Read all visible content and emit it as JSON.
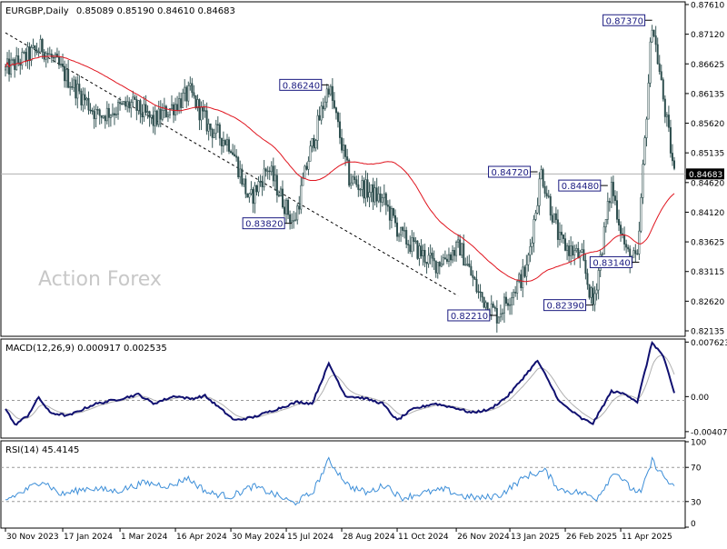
{
  "chart_data": {
    "type": "candlestick",
    "symbol_line": {
      "symbol": "EURGBP,Daily",
      "ohlc": "0.85089 0.85190 0.84610 0.84683"
    },
    "watermark": "Action Forex",
    "current_price": "0.84683",
    "price_axis": {
      "ylim": [
        0.8186,
        0.8766
      ],
      "ticks": [
        "0.87610",
        "0.87120",
        "0.86625",
        "0.86135",
        "0.85620",
        "0.85135",
        "0.84620",
        "0.84120",
        "0.83625",
        "0.83115",
        "0.82620",
        "0.82135"
      ]
    },
    "x_axis": {
      "ticks": [
        "30 Nov 2023",
        "17 Jan 2024",
        "1 Mar 2024",
        "16 Apr 2024",
        "30 May 2024",
        "15 Jul 2024",
        "28 Aug 2024",
        "11 Oct 2024",
        "26 Nov 2024",
        "13 Jan 2025",
        "26 Feb 2025",
        "11 Apr 2025"
      ],
      "tick_index": [
        0,
        31,
        62,
        92,
        122,
        152,
        182,
        212,
        244,
        273,
        303,
        333
      ]
    },
    "num_bars": 363,
    "price_path": [
      [
        0,
        0.865
      ],
      [
        20,
        0.869
      ],
      [
        50,
        0.857
      ],
      [
        68,
        0.859
      ],
      [
        80,
        0.856
      ],
      [
        100,
        0.861
      ],
      [
        110,
        0.855
      ],
      [
        122,
        0.852
      ],
      [
        132,
        0.842
      ],
      [
        142,
        0.848
      ],
      [
        156,
        0.838
      ],
      [
        164,
        0.8495
      ],
      [
        175,
        0.8624
      ],
      [
        186,
        0.846
      ],
      [
        205,
        0.842
      ],
      [
        214,
        0.836
      ],
      [
        232,
        0.831
      ],
      [
        246,
        0.834
      ],
      [
        256,
        0.826
      ],
      [
        266,
        0.8221
      ],
      [
        282,
        0.83
      ],
      [
        290,
        0.8472
      ],
      [
        300,
        0.835
      ],
      [
        312,
        0.832
      ],
      [
        318,
        0.8239
      ],
      [
        328,
        0.8448
      ],
      [
        336,
        0.833
      ],
      [
        342,
        0.8314
      ],
      [
        350,
        0.8737
      ],
      [
        356,
        0.86
      ],
      [
        362,
        0.8468
      ]
    ],
    "series": [
      {
        "name": "Moving Average (red)",
        "color": "#e0141e"
      }
    ],
    "trendline": {
      "from": [
        0,
        0.8715
      ],
      "to": [
        245,
        0.8255
      ],
      "style": "dashed",
      "upper_channel": {
        "from": [
          0,
          0.869
        ],
        "to": [
          98,
          0.856
        ]
      }
    },
    "price_labels": [
      {
        "text": "0.86240",
        "value": 0.8624,
        "bar": 175,
        "side": "left"
      },
      {
        "text": "0.83820",
        "value": 0.8382,
        "bar": 155,
        "side": "left"
      },
      {
        "text": "0.84720",
        "value": 0.8472,
        "bar": 288,
        "side": "left"
      },
      {
        "text": "0.84480",
        "value": 0.8448,
        "bar": 326,
        "side": "left"
      },
      {
        "text": "0.82210",
        "value": 0.8221,
        "bar": 266,
        "side": "left"
      },
      {
        "text": "0.82390",
        "value": 0.8239,
        "bar": 318,
        "side": "left"
      },
      {
        "text": "0.83140",
        "value": 0.8314,
        "bar": 343,
        "side": "left"
      },
      {
        "text": "0.87370",
        "value": 0.8737,
        "bar": 350,
        "side": "left"
      }
    ],
    "macd": {
      "title": "MACD(12,26,9) 0.000917 0.002535",
      "ylim": [
        -0.0048,
        0.0079
      ],
      "ticks": [
        "0.007623",
        "0.00",
        "-0.004073"
      ],
      "path": [
        [
          0,
          -0.001
        ],
        [
          5,
          -0.0032
        ],
        [
          12,
          -0.002
        ],
        [
          18,
          0.0004
        ],
        [
          24,
          -0.0016
        ],
        [
          34,
          -0.002
        ],
        [
          48,
          -0.0005
        ],
        [
          62,
          0.0002
        ],
        [
          72,
          0.0008
        ],
        [
          80,
          -0.0004
        ],
        [
          92,
          0.0006
        ],
        [
          100,
          0.0002
        ],
        [
          108,
          0.0006
        ],
        [
          116,
          -0.001
        ],
        [
          124,
          -0.0026
        ],
        [
          134,
          -0.0022
        ],
        [
          146,
          -0.0012
        ],
        [
          158,
          -0.0002
        ],
        [
          166,
          -0.0004
        ],
        [
          175,
          0.0048
        ],
        [
          184,
          0.0006
        ],
        [
          194,
          0.0003
        ],
        [
          204,
          -0.0004
        ],
        [
          212,
          -0.0026
        ],
        [
          220,
          -0.0012
        ],
        [
          232,
          -0.0004
        ],
        [
          244,
          -0.001
        ],
        [
          252,
          -0.0016
        ],
        [
          262,
          -0.0012
        ],
        [
          272,
          0.0006
        ],
        [
          288,
          0.0052
        ],
        [
          300,
          -0.0002
        ],
        [
          312,
          -0.0024
        ],
        [
          318,
          -0.003
        ],
        [
          328,
          0.0012
        ],
        [
          336,
          0.0008
        ],
        [
          342,
          -0.0002
        ],
        [
          350,
          0.0076
        ],
        [
          356,
          0.0058
        ],
        [
          362,
          0.0009
        ]
      ]
    },
    "rsi": {
      "title": "RSI(14) 45.4145",
      "ylim": [
        0,
        100
      ],
      "levels": [
        70,
        30
      ],
      "ticks": [
        "100",
        "70",
        "30",
        "0"
      ],
      "path": [
        [
          0,
          32
        ],
        [
          10,
          42
        ],
        [
          20,
          55
        ],
        [
          30,
          38
        ],
        [
          45,
          46
        ],
        [
          60,
          42
        ],
        [
          75,
          52
        ],
        [
          90,
          48
        ],
        [
          98,
          58
        ],
        [
          110,
          40
        ],
        [
          122,
          36
        ],
        [
          134,
          48
        ],
        [
          146,
          38
        ],
        [
          156,
          28
        ],
        [
          166,
          40
        ],
        [
          175,
          78
        ],
        [
          186,
          48
        ],
        [
          196,
          40
        ],
        [
          206,
          50
        ],
        [
          214,
          34
        ],
        [
          226,
          40
        ],
        [
          238,
          44
        ],
        [
          248,
          36
        ],
        [
          258,
          34
        ],
        [
          268,
          38
        ],
        [
          282,
          60
        ],
        [
          292,
          66
        ],
        [
          300,
          44
        ],
        [
          312,
          40
        ],
        [
          320,
          34
        ],
        [
          330,
          66
        ],
        [
          338,
          46
        ],
        [
          344,
          40
        ],
        [
          350,
          78
        ],
        [
          356,
          60
        ],
        [
          362,
          45
        ]
      ]
    }
  }
}
